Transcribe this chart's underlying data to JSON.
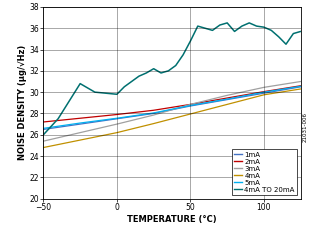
{
  "title": "",
  "xlabel": "TEMPERATURE (°C)",
  "ylabel": "NOISE DENSITY (μg/√Hz)",
  "xlim": [
    -50,
    125
  ],
  "ylim": [
    20,
    38
  ],
  "xticks": [
    -50,
    0,
    50,
    100
  ],
  "yticks": [
    20,
    22,
    24,
    26,
    28,
    30,
    32,
    34,
    36,
    38
  ],
  "background_color": "#ffffff",
  "grid_color": "#000000",
  "series": {
    "1mA": {
      "color": "#4472c4",
      "x": [
        -50,
        -25,
        0,
        25,
        50,
        75,
        100,
        125
      ],
      "y": [
        26.5,
        27.0,
        27.5,
        28.0,
        28.7,
        29.3,
        29.9,
        30.5
      ]
    },
    "2mA": {
      "color": "#c00000",
      "x": [
        -50,
        -25,
        0,
        25,
        50,
        75,
        100,
        125
      ],
      "y": [
        27.2,
        27.55,
        27.9,
        28.3,
        28.85,
        29.45,
        30.05,
        30.6
      ]
    },
    "3mA": {
      "color": "#a0a0a0",
      "x": [
        -50,
        -25,
        0,
        25,
        50,
        75,
        100,
        125
      ],
      "y": [
        25.4,
        26.2,
        27.0,
        27.85,
        28.85,
        29.7,
        30.45,
        31.0
      ]
    },
    "4mA": {
      "color": "#c09000",
      "x": [
        -50,
        -25,
        0,
        25,
        50,
        75,
        100,
        125
      ],
      "y": [
        24.8,
        25.5,
        26.2,
        27.05,
        27.95,
        28.85,
        29.75,
        30.3
      ]
    },
    "5mA": {
      "color": "#00b0f0",
      "x": [
        -50,
        -25,
        0,
        25,
        50,
        75,
        100,
        125
      ],
      "y": [
        26.6,
        27.1,
        27.55,
        28.05,
        28.75,
        29.35,
        30.0,
        30.55
      ]
    },
    "4mA TO 20mA": {
      "color": "#007070",
      "x": [
        -50,
        -40,
        -25,
        -15,
        0,
        5,
        10,
        15,
        20,
        25,
        30,
        35,
        40,
        45,
        50,
        55,
        60,
        65,
        70,
        75,
        80,
        85,
        90,
        95,
        100,
        105,
        110,
        115,
        120,
        125
      ],
      "y": [
        26.0,
        27.5,
        30.8,
        30.0,
        29.8,
        30.5,
        31.0,
        31.5,
        31.8,
        32.2,
        31.8,
        32.0,
        32.5,
        33.5,
        34.8,
        36.2,
        36.0,
        35.8,
        36.3,
        36.5,
        35.7,
        36.2,
        36.5,
        36.2,
        36.1,
        35.8,
        35.2,
        34.5,
        35.5,
        35.7
      ]
    }
  },
  "legend_order": [
    "1mA",
    "2mA",
    "3mA",
    "4mA",
    "5mA",
    "4mA TO 20mA"
  ],
  "font_size": 5.0,
  "label_font_size": 6.0,
  "tick_font_size": 5.5,
  "watermark": "21031-006"
}
